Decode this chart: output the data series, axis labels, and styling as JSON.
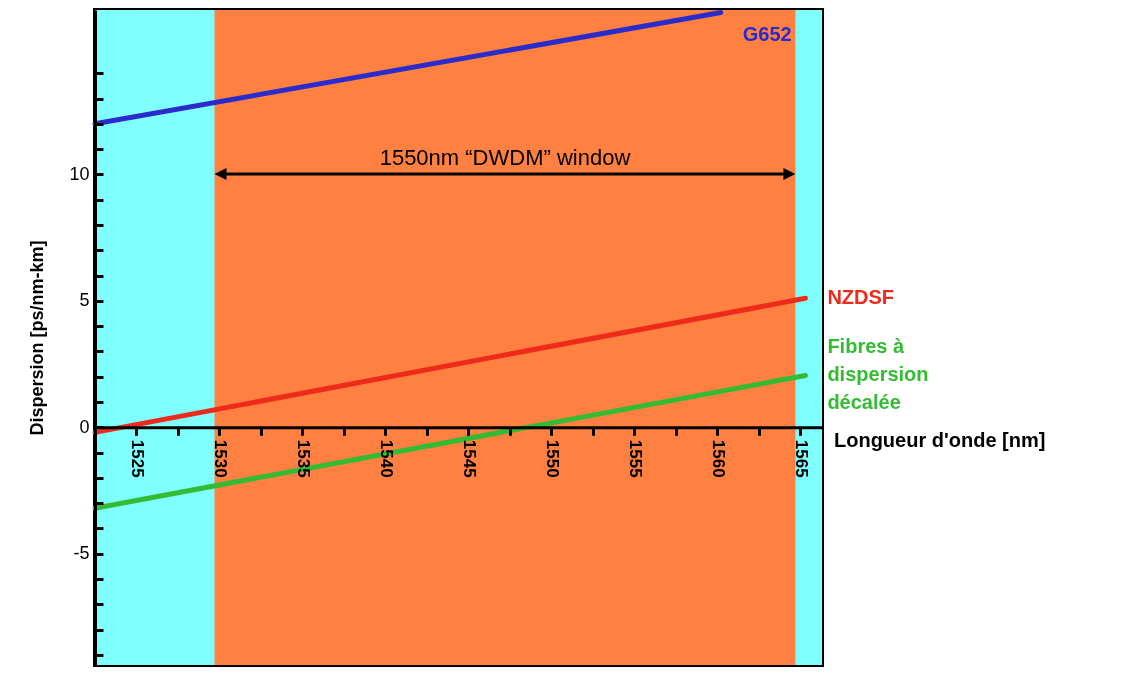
{
  "chart_data": {
    "type": "line",
    "xlabel": "Longueur d'onde [nm]",
    "ylabel": "Dispersion [ps/nm-km]",
    "series": [
      {
        "name": "G652",
        "color": "#2b2bcc",
        "x": [
          1522.5,
          1560.2
        ],
        "values": [
          12.0,
          16.4
        ]
      },
      {
        "name": "NZDSF",
        "color": "#ee2a1a",
        "x": [
          1522.5,
          1565.3
        ],
        "values": [
          -0.2,
          5.1
        ]
      },
      {
        "name": "Fibres à dispersion décalée",
        "color": "#33bb33",
        "x": [
          1522.5,
          1565.3
        ],
        "values": [
          -3.2,
          2.05
        ]
      }
    ],
    "xlim": [
      1522.5,
      1566.3
    ],
    "xticks": [
      {
        "value": 1522.5,
        "label": null
      },
      1525,
      {
        "value": 1527.5,
        "label": null
      },
      1530,
      {
        "value": 1532.5,
        "label": null
      },
      1535,
      {
        "value": 1537.5,
        "label": null
      },
      1540,
      {
        "value": 1542.5,
        "label": null
      },
      1545,
      {
        "value": 1547.5,
        "label": null
      },
      1550,
      {
        "value": 1552.5,
        "label": null
      },
      1555,
      {
        "value": 1557.5,
        "label": null
      },
      1560,
      {
        "value": 1562.5,
        "label": null
      },
      1565
    ],
    "ylim": [
      -9.4,
      16.5
    ],
    "yticks": [
      {
        "value": -9,
        "label": null
      },
      {
        "value": -8,
        "label": null
      },
      {
        "value": -7,
        "label": null
      },
      {
        "value": -6,
        "label": null
      },
      -5,
      {
        "value": -4,
        "label": null
      },
      {
        "value": -3,
        "label": null
      },
      {
        "value": -2,
        "label": null
      },
      {
        "value": -1,
        "label": null
      },
      0,
      {
        "value": 1,
        "label": null
      },
      {
        "value": 2,
        "label": null
      },
      {
        "value": 3,
        "label": null
      },
      {
        "value": 4,
        "label": null
      },
      5,
      {
        "value": 6,
        "label": null
      },
      {
        "value": 7,
        "label": null
      },
      {
        "value": 8,
        "label": null
      },
      {
        "value": 9,
        "label": null
      },
      10,
      {
        "value": 11,
        "label": null
      },
      {
        "value": 12,
        "label": null
      },
      {
        "value": 13,
        "label": null
      },
      {
        "value": 14,
        "label": null
      }
    ],
    "bands": [
      {
        "axis": "x",
        "from": 1522.5,
        "to": 1566.3,
        "color": "#80ffff"
      },
      {
        "axis": "x",
        "from": 1529.7,
        "to": 1564.7,
        "color": "#ff8040"
      }
    ],
    "annotations": [
      "1550nm “DWDM” window"
    ],
    "grid": false,
    "marker": "none",
    "line_style": "solid"
  }
}
